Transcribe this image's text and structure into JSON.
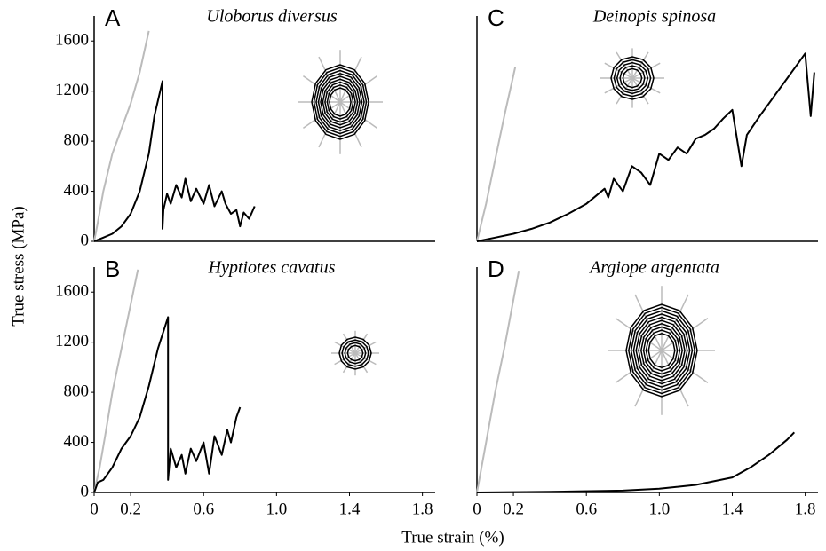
{
  "ylabel": "True stress (MPa)",
  "xlabel": "True strain (%)",
  "chart_data": [
    {
      "type": "line",
      "panel": "A",
      "title": "Uloborus diversus",
      "xlim": [
        0,
        1.87
      ],
      "ylim": [
        0,
        1800
      ],
      "yticks": [
        0,
        400,
        800,
        1200,
        1600
      ],
      "series": [
        {
          "color": "#bbbbbb",
          "x": [
            0,
            0.02,
            0.05,
            0.1,
            0.15,
            0.2,
            0.25,
            0.3
          ],
          "values": [
            0,
            150,
            400,
            700,
            900,
            1100,
            1350,
            1680
          ]
        },
        {
          "color": "#000000",
          "x": [
            0,
            0.05,
            0.1,
            0.15,
            0.2,
            0.25,
            0.3,
            0.33,
            0.37,
            0.375,
            0.375,
            0.38,
            0.4,
            0.42,
            0.45,
            0.48,
            0.5,
            0.53,
            0.56,
            0.6,
            0.63,
            0.66,
            0.7,
            0.72,
            0.75,
            0.78,
            0.8,
            0.82,
            0.85,
            0.88
          ],
          "values": [
            0,
            30,
            60,
            120,
            220,
            400,
            700,
            1000,
            1250,
            1280,
            100,
            250,
            380,
            300,
            450,
            350,
            500,
            320,
            420,
            300,
            450,
            280,
            400,
            300,
            220,
            250,
            120,
            230,
            180,
            280
          ]
        }
      ]
    },
    {
      "type": "line",
      "panel": "B",
      "title": "Hyptiotes cavatus",
      "xlim": [
        0,
        1.87
      ],
      "ylim": [
        0,
        1800
      ],
      "yticks": [
        0,
        400,
        800,
        1200,
        1600
      ],
      "xticks": [
        0,
        0.2,
        0.6,
        {
          "value": 1,
          "label": "1.0"
        },
        1.4,
        1.8
      ],
      "series": [
        {
          "color": "#bbbbbb",
          "x": [
            0,
            0.03,
            0.06,
            0.1,
            0.15,
            0.2,
            0.24
          ],
          "values": [
            0,
            200,
            450,
            800,
            1150,
            1500,
            1780
          ]
        },
        {
          "color": "#000000",
          "x": [
            0,
            0.02,
            0.05,
            0.1,
            0.15,
            0.2,
            0.25,
            0.3,
            0.35,
            0.405,
            0.405,
            0.42,
            0.45,
            0.48,
            0.5,
            0.53,
            0.56,
            0.6,
            0.63,
            0.66,
            0.7,
            0.73,
            0.75,
            0.78,
            0.8
          ],
          "values": [
            0,
            80,
            100,
            200,
            350,
            450,
            600,
            850,
            1150,
            1400,
            100,
            350,
            200,
            300,
            150,
            350,
            250,
            400,
            150,
            450,
            300,
            500,
            400,
            600,
            680
          ]
        }
      ]
    },
    {
      "type": "line",
      "panel": "C",
      "title": "Deinopis spinosa",
      "xlim": [
        0,
        1.87
      ],
      "ylim": [
        0,
        1800
      ],
      "series": [
        {
          "color": "#bbbbbb",
          "x": [
            0,
            0.05,
            0.1,
            0.15,
            0.21
          ],
          "values": [
            0,
            300,
            650,
            1000,
            1390
          ]
        },
        {
          "color": "#000000",
          "x": [
            0,
            0.1,
            0.2,
            0.3,
            0.4,
            0.5,
            0.6,
            0.7,
            0.72,
            0.75,
            0.8,
            0.85,
            0.9,
            0.95,
            1.0,
            1.05,
            1.1,
            1.15,
            1.2,
            1.25,
            1.3,
            1.35,
            1.4,
            1.45,
            1.48,
            1.55,
            1.6,
            1.65,
            1.7,
            1.75,
            1.8,
            1.83,
            1.85
          ],
          "values": [
            0,
            30,
            60,
            100,
            150,
            220,
            300,
            420,
            350,
            500,
            400,
            600,
            550,
            450,
            700,
            650,
            750,
            700,
            820,
            850,
            900,
            980,
            1050,
            600,
            850,
            1000,
            1100,
            1200,
            1300,
            1400,
            1500,
            1000,
            1350
          ]
        }
      ]
    },
    {
      "type": "line",
      "panel": "D",
      "title": "Argiope argentata",
      "xlim": [
        0,
        1.87
      ],
      "ylim": [
        0,
        1800
      ],
      "xticks": [
        0,
        0.2,
        0.6,
        {
          "value": 1,
          "label": "1.0"
        },
        1.4,
        1.8
      ],
      "series": [
        {
          "color": "#bbbbbb",
          "x": [
            0,
            0.05,
            0.1,
            0.15,
            0.23
          ],
          "values": [
            0,
            400,
            800,
            1150,
            1770
          ]
        },
        {
          "color": "#000000",
          "x": [
            0,
            0.4,
            0.8,
            1.0,
            1.2,
            1.4,
            1.5,
            1.6,
            1.7,
            1.74
          ],
          "values": [
            0,
            5,
            15,
            30,
            60,
            120,
            200,
            300,
            420,
            480
          ]
        }
      ]
    }
  ]
}
